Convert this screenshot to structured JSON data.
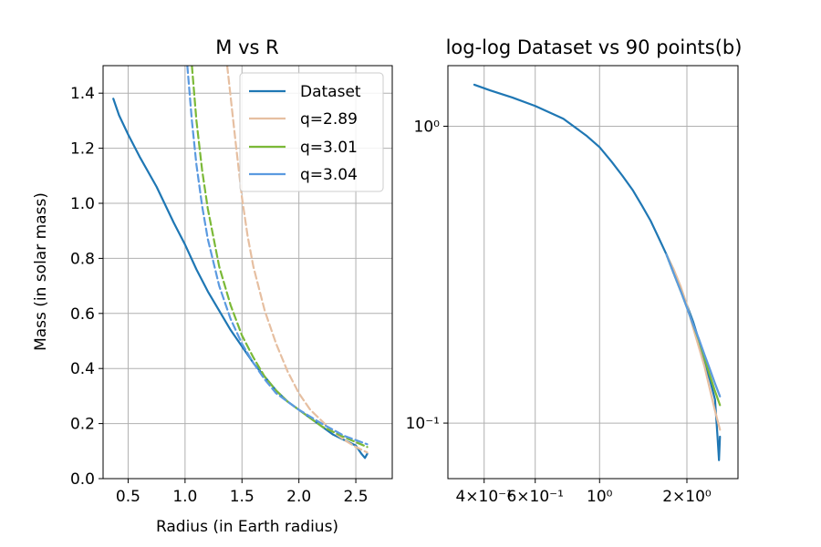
{
  "colors": {
    "dataset": "#1f77b4",
    "q289": "#e6bfa1",
    "q301": "#7bb937",
    "q304": "#5b9ae0",
    "grid": "#b0b0b0"
  },
  "chart_data": [
    {
      "type": "line",
      "title": "M vs R",
      "xlabel": "Radius (in Earth radius)",
      "ylabel": "Mass (in solar mass)",
      "xlim": [
        0.28,
        2.82
      ],
      "ylim": [
        0.0,
        1.5
      ],
      "xticks": [
        0.5,
        1.0,
        1.5,
        2.0,
        2.5
      ],
      "xticklabels": [
        "0.5",
        "1.0",
        "1.5",
        "2.0",
        "2.5"
      ],
      "yticks": [
        0.0,
        0.2,
        0.4,
        0.6,
        0.8,
        1.0,
        1.2,
        1.4
      ],
      "yticklabels": [
        "0.0",
        "0.2",
        "0.4",
        "0.6",
        "0.8",
        "1.0",
        "1.2",
        "1.4"
      ],
      "grid": true,
      "legend": "top-right",
      "series": [
        {
          "name": "Dataset",
          "key": "dataset",
          "style": "solid",
          "x": [
            0.37,
            0.42,
            0.5,
            0.6,
            0.75,
            0.9,
            1.0,
            1.1,
            1.2,
            1.3,
            1.4,
            1.5,
            1.6,
            1.7,
            1.8,
            1.9,
            2.0,
            2.1,
            2.2,
            2.3,
            2.4,
            2.5,
            2.55,
            2.58,
            2.6
          ],
          "y": [
            1.38,
            1.32,
            1.25,
            1.17,
            1.06,
            0.93,
            0.85,
            0.76,
            0.68,
            0.61,
            0.54,
            0.48,
            0.42,
            0.37,
            0.32,
            0.28,
            0.25,
            0.22,
            0.19,
            0.16,
            0.14,
            0.12,
            0.09,
            0.075,
            0.09
          ]
        },
        {
          "name": "q=2.89",
          "key": "q289",
          "style": "dashed",
          "x": [
            1.37,
            1.45,
            1.5,
            1.55,
            1.6,
            1.7,
            1.8,
            1.9,
            2.0,
            2.1,
            2.2,
            2.3,
            2.4,
            2.5,
            2.6
          ],
          "y": [
            1.5,
            1.2,
            1.02,
            0.88,
            0.77,
            0.61,
            0.49,
            0.39,
            0.31,
            0.25,
            0.21,
            0.17,
            0.14,
            0.115,
            0.095
          ]
        },
        {
          "name": "q=3.01",
          "key": "q301",
          "style": "dashed",
          "x": [
            1.06,
            1.1,
            1.15,
            1.2,
            1.3,
            1.4,
            1.5,
            1.6,
            1.7,
            1.8,
            1.9,
            2.0,
            2.2,
            2.4,
            2.6
          ],
          "y": [
            1.5,
            1.3,
            1.12,
            0.98,
            0.77,
            0.63,
            0.52,
            0.44,
            0.37,
            0.32,
            0.28,
            0.25,
            0.19,
            0.15,
            0.115
          ]
        },
        {
          "name": "q=3.04",
          "key": "q304",
          "style": "dashed",
          "x": [
            1.02,
            1.06,
            1.1,
            1.15,
            1.2,
            1.3,
            1.4,
            1.5,
            1.6,
            1.7,
            1.8,
            1.9,
            2.0,
            2.2,
            2.4,
            2.6
          ],
          "y": [
            1.5,
            1.3,
            1.14,
            0.99,
            0.87,
            0.7,
            0.58,
            0.49,
            0.42,
            0.36,
            0.31,
            0.28,
            0.25,
            0.2,
            0.155,
            0.125
          ]
        }
      ]
    },
    {
      "type": "line",
      "title": "log-log Dataset vs 90 points(b)",
      "xscale": "log",
      "yscale": "log",
      "xlim": [
        0.3,
        3.0
      ],
      "ylim": [
        0.065,
        1.6
      ],
      "xticks": [
        0.4,
        0.6,
        1.0,
        2.0
      ],
      "xticklabels": [
        "4×10⁻¹",
        "6×10⁻¹",
        "10⁰",
        "2×10⁰"
      ],
      "yticks": [
        0.1,
        1.0
      ],
      "yticklabels": [
        "10⁻¹",
        "10⁰"
      ],
      "grid": true,
      "series": [
        {
          "key": "dataset",
          "style": "solid",
          "x": [
            0.37,
            0.42,
            0.5,
            0.6,
            0.75,
            0.9,
            1.0,
            1.1,
            1.2,
            1.3,
            1.4,
            1.5,
            1.6,
            1.7,
            1.8,
            1.9,
            2.0,
            2.1,
            2.2,
            2.3,
            2.4,
            2.5,
            2.55,
            2.58,
            2.6
          ],
          "y": [
            1.38,
            1.32,
            1.25,
            1.17,
            1.06,
            0.93,
            0.85,
            0.76,
            0.68,
            0.61,
            0.54,
            0.48,
            0.42,
            0.37,
            0.32,
            0.28,
            0.25,
            0.22,
            0.19,
            0.16,
            0.14,
            0.12,
            0.09,
            0.075,
            0.09
          ]
        },
        {
          "key": "q289",
          "style": "solid",
          "x": [
            1.7,
            1.8,
            1.9,
            2.0,
            2.1,
            2.2,
            2.3,
            2.4,
            2.5,
            2.6
          ],
          "y": [
            0.37,
            0.33,
            0.29,
            0.25,
            0.21,
            0.18,
            0.155,
            0.13,
            0.11,
            0.095
          ]
        },
        {
          "key": "q301",
          "style": "solid",
          "x": [
            1.7,
            1.8,
            1.9,
            2.0,
            2.1,
            2.2,
            2.3,
            2.4,
            2.5,
            2.6
          ],
          "y": [
            0.37,
            0.32,
            0.28,
            0.245,
            0.215,
            0.19,
            0.165,
            0.145,
            0.128,
            0.115
          ]
        },
        {
          "key": "q304",
          "style": "solid",
          "x": [
            1.7,
            1.8,
            1.9,
            2.0,
            2.1,
            2.2,
            2.3,
            2.4,
            2.5,
            2.6
          ],
          "y": [
            0.37,
            0.32,
            0.28,
            0.245,
            0.215,
            0.192,
            0.17,
            0.152,
            0.136,
            0.123
          ]
        }
      ]
    }
  ]
}
